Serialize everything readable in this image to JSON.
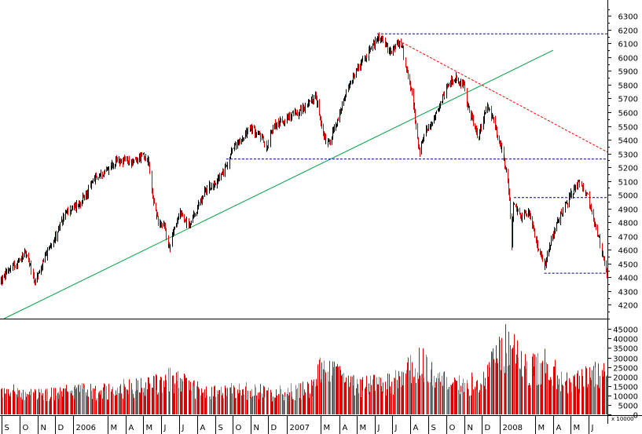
{
  "chart_data": [
    {
      "type": "candlestick",
      "panel": "price",
      "x_unit": "date",
      "yticks": [
        4200,
        4300,
        4400,
        4500,
        4600,
        4700,
        4800,
        4900,
        5000,
        5100,
        5200,
        5300,
        5400,
        5500,
        5600,
        5700,
        5800,
        5900,
        6000,
        6100,
        6200,
        6300
      ],
      "ylim": [
        4100,
        6370
      ],
      "xlim": [
        "2005-08-29",
        "2008-07-03"
      ],
      "up_color": "#000000",
      "down_color": "#dd0000",
      "grid": false,
      "series": [
        {
          "values": [
            [
              "2005-09-01",
              4380
            ],
            [
              "2005-09-15",
              4470
            ],
            [
              "2005-10-01",
              4520
            ],
            [
              "2005-10-10",
              4600
            ],
            [
              "2005-10-20",
              4470
            ],
            [
              "2005-10-28",
              4370
            ],
            [
              "2005-11-08",
              4480
            ],
            [
              "2005-11-22",
              4620
            ],
            [
              "2005-12-08",
              4760
            ],
            [
              "2005-12-20",
              4870
            ],
            [
              "2006-01-05",
              4920
            ],
            [
              "2006-01-20",
              4980
            ],
            [
              "2006-02-05",
              5100
            ],
            [
              "2006-02-20",
              5160
            ],
            [
              "2006-03-05",
              5200
            ],
            [
              "2006-03-20",
              5250
            ],
            [
              "2006-04-05",
              5240
            ],
            [
              "2006-04-18",
              5240
            ],
            [
              "2006-04-30",
              5300
            ],
            [
              "2006-05-10",
              5230
            ],
            [
              "2006-05-18",
              4960
            ],
            [
              "2006-05-25",
              4820
            ],
            [
              "2006-06-05",
              4780
            ],
            [
              "2006-06-14",
              4600
            ],
            [
              "2006-06-22",
              4760
            ],
            [
              "2006-07-05",
              4870
            ],
            [
              "2006-07-18",
              4760
            ],
            [
              "2006-08-01",
              4900
            ],
            [
              "2006-08-15",
              5030
            ],
            [
              "2006-09-01",
              5090
            ],
            [
              "2006-09-15",
              5160
            ],
            [
              "2006-10-01",
              5330
            ],
            [
              "2006-10-15",
              5410
            ],
            [
              "2006-11-01",
              5480
            ],
            [
              "2006-11-15",
              5440
            ],
            [
              "2006-11-28",
              5350
            ],
            [
              "2006-12-10",
              5500
            ],
            [
              "2006-12-29",
              5550
            ],
            [
              "2007-01-15",
              5590
            ],
            [
              "2007-02-05",
              5650
            ],
            [
              "2007-02-20",
              5720
            ],
            [
              "2007-03-05",
              5430
            ],
            [
              "2007-03-14",
              5380
            ],
            [
              "2007-03-28",
              5520
            ],
            [
              "2007-04-15",
              5760
            ],
            [
              "2007-05-01",
              5910
            ],
            [
              "2007-05-20",
              6020
            ],
            [
              "2007-06-05",
              6140
            ],
            [
              "2007-06-15",
              6120
            ],
            [
              "2007-06-25",
              6040
            ],
            [
              "2007-07-05",
              6080
            ],
            [
              "2007-07-15",
              6120
            ],
            [
              "2007-07-25",
              5900
            ],
            [
              "2007-08-05",
              5700
            ],
            [
              "2007-08-16",
              5310
            ],
            [
              "2007-08-25",
              5440
            ],
            [
              "2007-09-05",
              5520
            ],
            [
              "2007-09-20",
              5650
            ],
            [
              "2007-10-05",
              5820
            ],
            [
              "2007-10-15",
              5850
            ],
            [
              "2007-10-30",
              5800
            ],
            [
              "2007-11-10",
              5600
            ],
            [
              "2007-11-25",
              5420
            ],
            [
              "2007-12-10",
              5650
            ],
            [
              "2007-12-20",
              5550
            ],
            [
              "2008-01-05",
              5320
            ],
            [
              "2008-01-15",
              5100
            ],
            [
              "2008-01-21",
              4620
            ],
            [
              "2008-01-24",
              4930
            ],
            [
              "2008-02-05",
              4850
            ],
            [
              "2008-02-20",
              4880
            ],
            [
              "2008-03-05",
              4620
            ],
            [
              "2008-03-17",
              4480
            ],
            [
              "2008-03-30",
              4700
            ],
            [
              "2008-04-15",
              4860
            ],
            [
              "2008-05-01",
              5000
            ],
            [
              "2008-05-15",
              5090
            ],
            [
              "2008-05-30",
              5000
            ],
            [
              "2008-06-10",
              4800
            ],
            [
              "2008-06-20",
              4650
            ],
            [
              "2008-06-30",
              4450
            ],
            [
              "2008-07-03",
              4380
            ]
          ]
        }
      ],
      "annotations": [
        {
          "type": "trendline",
          "color": "#00a040",
          "from": [
            "2005-09-05",
            4100
          ],
          "to": [
            "2008-04-01",
            6050
          ]
        },
        {
          "type": "trendline",
          "color": "#ff0000",
          "dashed": true,
          "from": [
            "2007-07-12",
            6120
          ],
          "to": [
            "2008-07-03",
            5310
          ]
        },
        {
          "type": "level",
          "color": "#000080",
          "dashed": true,
          "value": 6170,
          "from": "2007-06-05",
          "to": "2008-07-03"
        },
        {
          "type": "level",
          "color": "#000080",
          "dashed": true,
          "value": 5260,
          "from": "2006-09-20",
          "to": "2008-07-03"
        },
        {
          "type": "level",
          "color": "#000080",
          "dashed": true,
          "value": 4980,
          "from": "2008-01-25",
          "to": "2008-07-03"
        },
        {
          "type": "level",
          "color": "#000080",
          "dashed": true,
          "value": 4430,
          "from": "2008-03-17",
          "to": "2008-07-03"
        }
      ]
    },
    {
      "type": "bar",
      "panel": "volume",
      "x_unit": "date",
      "yticks": [
        0,
        5000,
        10000,
        15000,
        20000,
        25000,
        30000,
        35000,
        40000,
        45000
      ],
      "ylim": [
        0,
        48000
      ],
      "scale_label": "x 10000",
      "colors": [
        "#dd0000",
        "#888888"
      ],
      "series": [
        {
          "values": [
            [
              "2005-09-01",
              13000
            ],
            [
              "2005-11-01",
              12000
            ],
            [
              "2006-01-01",
              13000
            ],
            [
              "2006-03-01",
              14000
            ],
            [
              "2006-05-20",
              17000
            ],
            [
              "2006-06-15",
              21000
            ],
            [
              "2006-08-15",
              12000
            ],
            [
              "2006-10-15",
              14000
            ],
            [
              "2006-12-15",
              12000
            ],
            [
              "2007-02-15",
              15000
            ],
            [
              "2007-03-01",
              26000
            ],
            [
              "2007-05-01",
              16000
            ],
            [
              "2007-07-01",
              18000
            ],
            [
              "2007-08-16",
              30000
            ],
            [
              "2007-10-01",
              17000
            ],
            [
              "2007-12-01",
              18000
            ],
            [
              "2008-01-22",
              46000
            ],
            [
              "2008-02-15",
              24000
            ],
            [
              "2008-03-17",
              29000
            ],
            [
              "2008-05-01",
              17000
            ],
            [
              "2008-07-01",
              26000
            ]
          ]
        }
      ]
    }
  ],
  "x_axis": {
    "labels": [
      {
        "text": "S",
        "date": "2005-09-01"
      },
      {
        "text": "O",
        "date": "2005-10-01"
      },
      {
        "text": "N",
        "date": "2005-11-01"
      },
      {
        "text": "D",
        "date": "2005-12-01"
      },
      {
        "text": "2006",
        "date": "2006-01-01"
      },
      {
        "text": "M",
        "date": "2006-03-01"
      },
      {
        "text": "A",
        "date": "2006-04-01"
      },
      {
        "text": "M",
        "date": "2006-05-01"
      },
      {
        "text": "J",
        "date": "2006-06-01"
      },
      {
        "text": "J",
        "date": "2006-07-01"
      },
      {
        "text": "A",
        "date": "2006-08-01"
      },
      {
        "text": "S",
        "date": "2006-09-01"
      },
      {
        "text": "O",
        "date": "2006-10-01"
      },
      {
        "text": "N",
        "date": "2006-11-01"
      },
      {
        "text": "D",
        "date": "2006-12-01"
      },
      {
        "text": "2007",
        "date": "2007-01-01"
      },
      {
        "text": "M",
        "date": "2007-03-01"
      },
      {
        "text": "A",
        "date": "2007-04-01"
      },
      {
        "text": "M",
        "date": "2007-05-01"
      },
      {
        "text": "J",
        "date": "2007-06-01"
      },
      {
        "text": "J",
        "date": "2007-07-01"
      },
      {
        "text": "A",
        "date": "2007-08-01"
      },
      {
        "text": "S",
        "date": "2007-09-01"
      },
      {
        "text": "O",
        "date": "2007-10-01"
      },
      {
        "text": "N",
        "date": "2007-11-01"
      },
      {
        "text": "D",
        "date": "2007-12-01"
      },
      {
        "text": "2008",
        "date": "2008-01-01"
      },
      {
        "text": "M",
        "date": "2008-03-01"
      },
      {
        "text": "A",
        "date": "2008-04-01"
      },
      {
        "text": "M",
        "date": "2008-05-01"
      },
      {
        "text": "J",
        "date": "2008-06-01"
      }
    ]
  }
}
